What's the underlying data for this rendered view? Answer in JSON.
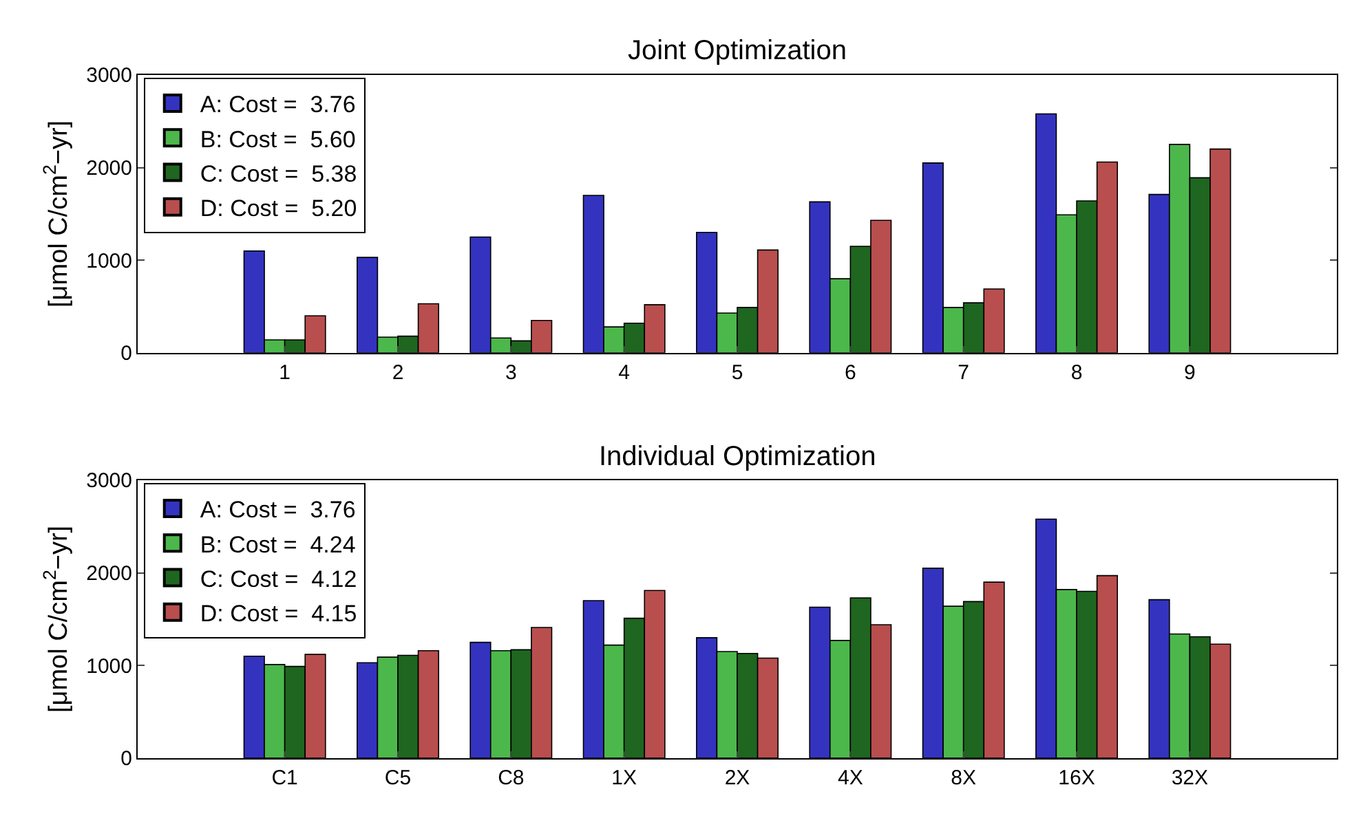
{
  "chart_data": [
    {
      "type": "bar",
      "title": "Joint Optimization",
      "ylabel": "[μmol C/cm$^{2}$−yr]",
      "categories": [
        "1",
        "2",
        "3",
        "4",
        "5",
        "6",
        "7",
        "8",
        "9"
      ],
      "ylim": [
        0,
        3000
      ],
      "yticks": [
        0,
        1000,
        2000,
        3000
      ],
      "legend": "top left",
      "series": [
        {
          "name": "A: Cost =  3.76",
          "color": "#3333c0",
          "values": [
            1100,
            1030,
            1250,
            1700,
            1300,
            1630,
            2050,
            2580,
            1710
          ]
        },
        {
          "name": "B: Cost =  5.60",
          "color": "#4cb84c",
          "values": [
            140,
            170,
            160,
            280,
            430,
            800,
            490,
            1490,
            2250
          ]
        },
        {
          "name": "C: Cost =  5.38",
          "color": "#1f6620",
          "values": [
            140,
            180,
            130,
            320,
            490,
            1150,
            540,
            1640,
            1890
          ]
        },
        {
          "name": "D: Cost =  5.20",
          "color": "#b94e4e",
          "values": [
            400,
            530,
            350,
            520,
            1110,
            1430,
            690,
            2060,
            2200
          ]
        }
      ]
    },
    {
      "type": "bar",
      "title": "Individual Optimization",
      "ylabel": "[μmol C/cm$^{2}$−yr]",
      "categories": [
        "C1",
        "C5",
        "C8",
        "1X",
        "2X",
        "4X",
        "8X",
        "16X",
        "32X"
      ],
      "ylim": [
        0,
        3000
      ],
      "yticks": [
        0,
        1000,
        2000,
        3000
      ],
      "legend": "top left",
      "series": [
        {
          "name": "A: Cost =  3.76",
          "color": "#3333c0",
          "values": [
            1100,
            1030,
            1250,
            1700,
            1300,
            1630,
            2050,
            2580,
            1710
          ]
        },
        {
          "name": "B: Cost =  4.24",
          "color": "#4cb84c",
          "values": [
            1010,
            1090,
            1160,
            1220,
            1150,
            1270,
            1640,
            1820,
            1340
          ]
        },
        {
          "name": "C: Cost =  4.12",
          "color": "#1f6620",
          "values": [
            990,
            1110,
            1170,
            1510,
            1130,
            1730,
            1690,
            1800,
            1310
          ]
        },
        {
          "name": "D: Cost =  4.15",
          "color": "#b94e4e",
          "values": [
            1120,
            1160,
            1410,
            1810,
            1080,
            1440,
            1900,
            1970,
            1230
          ]
        }
      ]
    }
  ]
}
